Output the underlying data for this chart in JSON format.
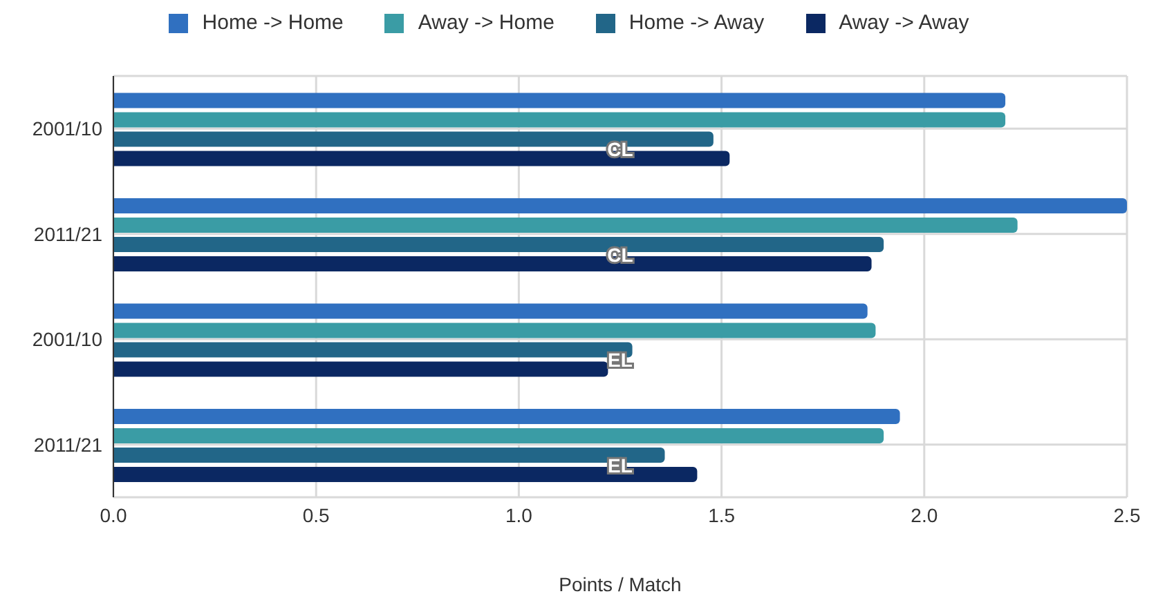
{
  "chart_data": {
    "type": "bar",
    "orientation": "horizontal",
    "xlabel": "Points / Match",
    "categories": [
      "2001/10",
      "2011/21",
      "2001/10",
      "2011/21"
    ],
    "series": [
      {
        "name": "Home -> Home",
        "color": "#3070c0",
        "values": [
          2.2,
          2.5,
          1.86,
          1.94
        ]
      },
      {
        "name": "Away -> Home",
        "color": "#3a9ca5",
        "values": [
          2.2,
          2.23,
          1.88,
          1.9
        ]
      },
      {
        "name": "Home -> Away",
        "color": "#226688",
        "values": [
          1.48,
          1.9,
          1.28,
          1.36
        ]
      },
      {
        "name": "Away -> Away",
        "color": "#0b2862",
        "values": [
          1.52,
          1.87,
          1.22,
          1.44
        ]
      }
    ],
    "xlim": [
      0,
      2.5
    ],
    "xticks": [
      {
        "value": 0,
        "label": "0.0"
      },
      {
        "value": 0.5,
        "label": "0.5"
      },
      {
        "value": 1,
        "label": "1.0"
      },
      {
        "value": 1.5,
        "label": "1.5"
      },
      {
        "value": 2,
        "label": "2.0"
      },
      {
        "value": 2.5,
        "label": "2.5"
      }
    ],
    "annotations": [
      "CL",
      "CL",
      "EL",
      "EL"
    ],
    "grid": true,
    "legend": "top"
  }
}
